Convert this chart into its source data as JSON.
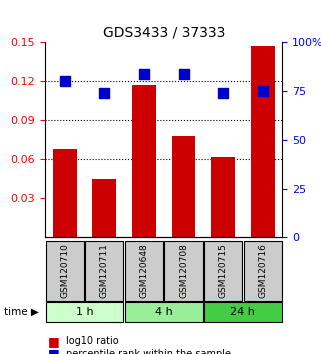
{
  "title": "GDS3433 / 37333",
  "samples": [
    "GSM120710",
    "GSM120711",
    "GSM120648",
    "GSM120708",
    "GSM120715",
    "GSM120716"
  ],
  "log10_ratio": [
    0.068,
    0.045,
    0.117,
    0.078,
    0.062,
    0.147
  ],
  "percentile_rank": [
    80,
    74,
    84,
    84,
    74,
    75
  ],
  "bar_color": "#cc0000",
  "dot_color": "#0000cc",
  "left_ylim": [
    0.0,
    0.15
  ],
  "left_yticks": [
    0.03,
    0.06,
    0.09,
    0.12,
    0.15
  ],
  "right_ylim": [
    0,
    100
  ],
  "right_yticks": [
    0,
    25,
    50,
    75,
    100
  ],
  "right_yticklabels": [
    "0",
    "25",
    "50",
    "75",
    "100%"
  ],
  "time_groups": [
    {
      "label": "1 h",
      "start": 0,
      "end": 2,
      "color": "#ccffcc"
    },
    {
      "label": "4 h",
      "start": 2,
      "end": 4,
      "color": "#99ee99"
    },
    {
      "label": "24 h",
      "start": 4,
      "end": 6,
      "color": "#44cc44"
    }
  ],
  "sample_box_color": "#cccccc",
  "grid_color": "black",
  "grid_linestyle": "dotted",
  "bar_width": 0.6,
  "dot_size": 60,
  "xlabel_time": "time",
  "legend_red": "log10 ratio",
  "legend_blue": "percentile rank within the sample"
}
